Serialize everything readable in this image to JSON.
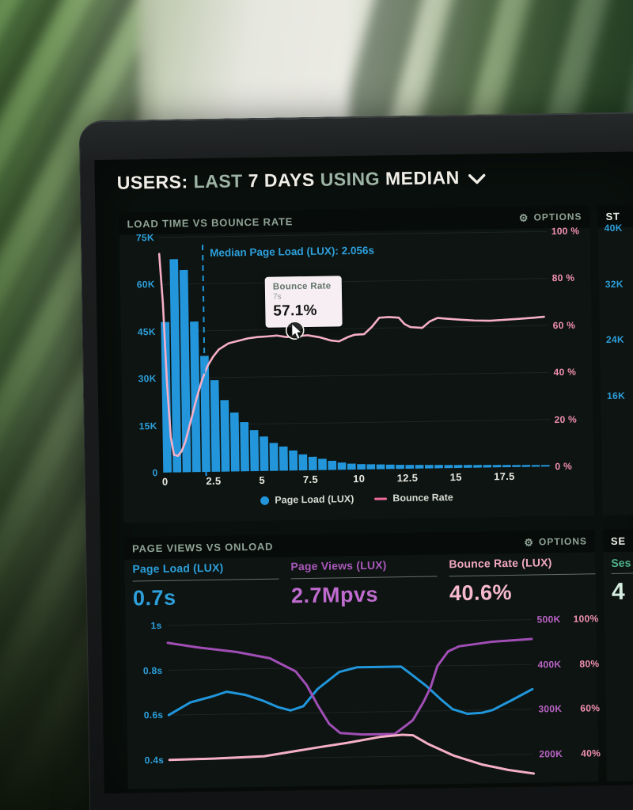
{
  "colors": {
    "bar_blue": "#2396db",
    "line_pink": "#f5afc6",
    "line_blue": "#2196db",
    "line_purple": "#a04eb5",
    "label_blue": "#2d9fdb",
    "label_pink": "#f290b0",
    "label_purple": "#ba63c6",
    "mint_label": "#50b08a",
    "mint_value": "#d5ede0",
    "panel_bg": "#0d1411",
    "header_strip_bg": "#070b09",
    "screen_bg": "#0a100d",
    "tooltip_bg": "#f6eef2",
    "grid": "rgba(255,255,255,0.07)"
  },
  "header": {
    "words": [
      {
        "t": "USERS:"
      },
      {
        "t": "LAST"
      },
      {
        "t": "7 DAYS"
      },
      {
        "t": "USING"
      },
      {
        "t": "MEDIAN"
      }
    ]
  },
  "panels": {
    "load_time": {
      "title": "LOAD TIME VS BOUNCE RATE",
      "options_label": "OPTIONS",
      "gear": "⚙",
      "median_label": "Median Page Load (LUX): 2.056s",
      "tooltip": {
        "title": "Bounce Rate",
        "time": "7s",
        "value": "57.1%"
      },
      "legend": [
        {
          "name": "Page Load (LUX)"
        },
        {
          "name": "Bounce Rate"
        }
      ]
    },
    "page_views": {
      "title": "PAGE VIEWS VS ONLOAD",
      "options_label": "OPTIONS",
      "gear": "⚙",
      "metrics": [
        {
          "label": "Page Load (LUX)",
          "value": "0.7s"
        },
        {
          "label": "Page Views (LUX)",
          "value": "2.7Mpvs"
        },
        {
          "label": "Bounce Rate (LUX)",
          "value": "40.6%"
        }
      ]
    },
    "right_top": {
      "title": "ST",
      "ticks": [
        "40K",
        "32K",
        "24K",
        "16K"
      ]
    },
    "right_bottom": {
      "title": "SE",
      "metric_label": "Ses",
      "metric_value": "4"
    }
  },
  "chart_data": [
    {
      "type": "bar",
      "title": "LOAD TIME VS BOUNCE RATE",
      "x_ticks": [
        "0",
        "2.5",
        "5",
        "7.5",
        "10",
        "12.5",
        "15",
        "17.5"
      ],
      "x_range_s": [
        0,
        20
      ],
      "bin_width_s": 0.5,
      "y_left": {
        "label": "Page Load (LUX)",
        "ticks": [
          "75K",
          "60K",
          "45K",
          "30K",
          "15K",
          "0"
        ],
        "range": [
          0,
          75000
        ]
      },
      "y_right": {
        "label": "Bounce Rate",
        "ticks": [
          "100 %",
          "80 %",
          "60 %",
          "40 %",
          "20 %",
          "0 %"
        ],
        "range_pct": [
          0,
          100
        ]
      },
      "bars_thousands": [
        48,
        68,
        64.5,
        48,
        37,
        29.2,
        22.8,
        18.8,
        15.7,
        13.1,
        11,
        8.9,
        7.7,
        6.4,
        5.1,
        4.3,
        3.6,
        2.9,
        2.3,
        1.9,
        1.7,
        1.6,
        1.5,
        1.4,
        1.3,
        1.2,
        1.15,
        1.1,
        1.05,
        1,
        0.95,
        0.9,
        0.85,
        0.8,
        0.75,
        0.7,
        0.65,
        0.6,
        0.55,
        0.5
      ],
      "bounce_rate_points": [
        [
          0,
          93
        ],
        [
          0.15,
          72
        ],
        [
          0.3,
          38
        ],
        [
          0.45,
          15
        ],
        [
          0.6,
          7.5
        ],
        [
          0.8,
          7
        ],
        [
          1,
          9
        ],
        [
          1.2,
          13
        ],
        [
          1.5,
          22
        ],
        [
          1.8,
          31
        ],
        [
          2.1,
          39
        ],
        [
          2.4,
          45
        ],
        [
          2.7,
          49
        ],
        [
          3,
          52
        ],
        [
          3.5,
          54.5
        ],
        [
          4,
          55.5
        ],
        [
          4.5,
          56.5
        ],
        [
          5,
          57
        ],
        [
          5.5,
          57.2
        ],
        [
          6,
          57.5
        ],
        [
          6.5,
          56.8
        ],
        [
          7,
          57.1
        ],
        [
          7.6,
          57.4
        ],
        [
          8.2,
          56.5
        ],
        [
          8.8,
          55
        ],
        [
          9.2,
          54.6
        ],
        [
          9.7,
          56.5
        ],
        [
          10,
          57.3
        ],
        [
          10.5,
          57.5
        ],
        [
          10.9,
          60.5
        ],
        [
          11.3,
          64.4
        ],
        [
          11.8,
          64.6
        ],
        [
          12.3,
          64.3
        ],
        [
          12.6,
          61.5
        ],
        [
          12.9,
          60.2
        ],
        [
          13.5,
          59.8
        ],
        [
          13.9,
          62.5
        ],
        [
          14.3,
          63.9
        ],
        [
          14.8,
          63.5
        ],
        [
          15.5,
          63
        ],
        [
          16.2,
          62.6
        ],
        [
          17,
          62.4
        ],
        [
          17.8,
          62.7
        ],
        [
          18.5,
          63
        ],
        [
          19.3,
          63.4
        ],
        [
          19.8,
          63.7
        ]
      ],
      "median_page_load_s": 2.056,
      "highlight": {
        "x_s": 7,
        "bounce_rate_pct": 57.1
      }
    },
    {
      "type": "line",
      "title": "PAGE VIEWS VS ONLOAD",
      "y_left": {
        "ticks": [
          "1s",
          "0.8s",
          "0.6s",
          "0.4s"
        ],
        "axis_top": 1.0,
        "axis_bottom": 0.4
      },
      "y_right_views": {
        "ticks": [
          "500K",
          "400K",
          "300K",
          "200K"
        ],
        "axis_top": 500,
        "axis_bottom": 200
      },
      "y_right_bounce": {
        "ticks": [
          "100%",
          "80%",
          "60%",
          "40%"
        ],
        "axis_top": 100,
        "axis_bottom": 40
      },
      "series": [
        {
          "name": "Page Load (LUX)",
          "unit": "s",
          "color_key": "line_blue",
          "axis_top": 1.0,
          "axis_bottom": 0.4,
          "points": [
            [
              0,
              0.6
            ],
            [
              0.06,
              0.655
            ],
            [
              0.12,
              0.68
            ],
            [
              0.16,
              0.7
            ],
            [
              0.21,
              0.685
            ],
            [
              0.26,
              0.657
            ],
            [
              0.3,
              0.628
            ],
            [
              0.335,
              0.612
            ],
            [
              0.37,
              0.63
            ],
            [
              0.41,
              0.706
            ],
            [
              0.47,
              0.78
            ],
            [
              0.52,
              0.8
            ],
            [
              0.64,
              0.8
            ],
            [
              0.67,
              0.762
            ],
            [
              0.71,
              0.71
            ],
            [
              0.75,
              0.648
            ],
            [
              0.78,
              0.606
            ],
            [
              0.82,
              0.585
            ],
            [
              0.86,
              0.588
            ],
            [
              0.89,
              0.6
            ],
            [
              0.94,
              0.64
            ],
            [
              1,
              0.69
            ]
          ]
        },
        {
          "name": "Page Views (LUX)",
          "unit": "thousands",
          "color_key": "line_purple",
          "axis_top": 500,
          "axis_bottom": 200,
          "points": [
            [
              0,
              461
            ],
            [
              0.08,
              450
            ],
            [
              0.19,
              438
            ],
            [
              0.28,
              423
            ],
            [
              0.35,
              393
            ],
            [
              0.38,
              362
            ],
            [
              0.41,
              316
            ],
            [
              0.44,
              275
            ],
            [
              0.47,
              254
            ],
            [
              0.53,
              250
            ],
            [
              0.62,
              250
            ],
            [
              0.67,
              280
            ],
            [
              0.7,
              320
            ],
            [
              0.72,
              352
            ],
            [
              0.74,
              400
            ],
            [
              0.77,
              432
            ],
            [
              0.8,
              443
            ],
            [
              0.89,
              452
            ],
            [
              1,
              457
            ]
          ]
        },
        {
          "name": "Bounce Rate (LUX)",
          "unit": "pct",
          "color_key": "line_pink",
          "axis_top": 100,
          "axis_bottom": 40,
          "points": [
            [
              0,
              40
            ],
            [
              0.12,
              40.3
            ],
            [
              0.26,
              41
            ],
            [
              0.41,
              44.6
            ],
            [
              0.49,
              46.4
            ],
            [
              0.58,
              48.8
            ],
            [
              0.64,
              49.6
            ],
            [
              0.67,
              49.3
            ],
            [
              0.71,
              45.4
            ],
            [
              0.78,
              40
            ],
            [
              0.86,
              35.7
            ],
            [
              0.93,
              33.2
            ],
            [
              1,
              31.4
            ]
          ]
        }
      ]
    }
  ]
}
